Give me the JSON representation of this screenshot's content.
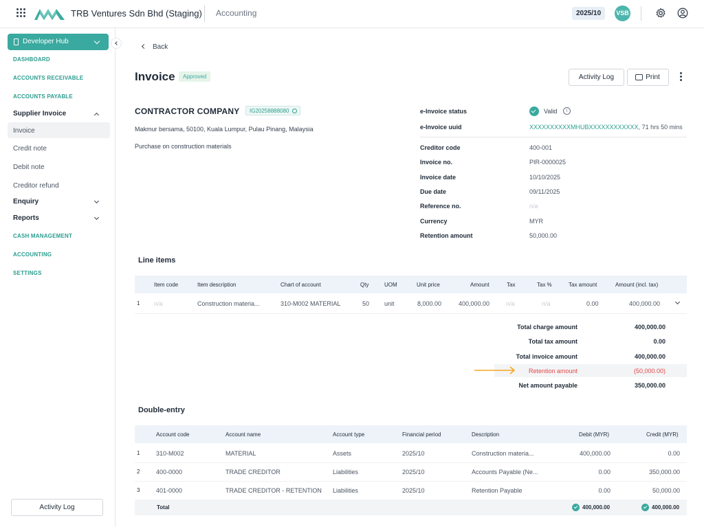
{
  "header": {
    "company": "TRB Ventures Sdn Bhd (Staging)",
    "app": "Accounting",
    "period": "2025/10",
    "avatar": "VSB"
  },
  "sidebar": {
    "hub_label": "Developer Hub",
    "items": [
      {
        "label": "DASHBOARD"
      },
      {
        "label": "ACCOUNTS RECEIVABLE"
      },
      {
        "label": "ACCOUNTS PAYABLE"
      }
    ],
    "supplier_invoice": "Supplier Invoice",
    "sub_items": [
      {
        "label": "Invoice"
      },
      {
        "label": "Credit note"
      },
      {
        "label": "Debit note"
      },
      {
        "label": "Creditor refund"
      }
    ],
    "enquiry": "Enquiry",
    "reports": "Reports",
    "bottom_items": [
      {
        "label": "CASH MANAGEMENT"
      },
      {
        "label": "ACCOUNTING"
      },
      {
        "label": "SETTINGS"
      }
    ],
    "activity_log": "Activity Log"
  },
  "page": {
    "back": "Back",
    "title": "Invoice",
    "status": "Approved",
    "activity_log": "Activity Log",
    "print": "Print"
  },
  "supplier": {
    "name": "CONTRACTOR COMPANY",
    "tin": "IG20258888080",
    "address": "Makmur bersama, 50100, Kuala Lumpur, Pulau Pinang, Malaysia",
    "description": "Purchase on construction materials"
  },
  "einvoice": {
    "status_label": "e-Invoice status",
    "status_value": "Valid",
    "uuid_label": "e-Invoice uuid",
    "uuid_value": "XXXXXXXXXXMHUBXXXXXXXXXXXX",
    "uuid_suffix": ", 71 hrs 50 mins"
  },
  "details": [
    {
      "label": "Creditor code",
      "value": "400-001"
    },
    {
      "label": "Invoice no.",
      "value": "PIR-0000025"
    },
    {
      "label": "Invoice date",
      "value": "10/10/2025"
    },
    {
      "label": "Due date",
      "value": "09/11/2025"
    },
    {
      "label": "Reference no.",
      "value": "n/a"
    },
    {
      "label": "Currency",
      "value": "MYR"
    },
    {
      "label": "Retention amount",
      "value": "50,000.00"
    }
  ],
  "line_items": {
    "title": "Line items",
    "headers": {
      "item_code": "Item code",
      "item_description": "Item description",
      "chart_of_account": "Chart of account",
      "qty": "Qty",
      "uom": "UOM",
      "unit_price": "Unit price",
      "amount": "Amount",
      "tax": "Tax",
      "tax_pct": "Tax %",
      "tax_amount": "Tax amount",
      "amount_incl_tax": "Amount (incl. tax)"
    },
    "rows": [
      {
        "no": "1",
        "item_code": "n/a",
        "item_description": "Construction materia...",
        "chart_of_account": "310-M002 MATERIAL",
        "qty": "50",
        "uom": "unit",
        "unit_price": "8,000.00",
        "amount": "400,000.00",
        "tax": "n/a",
        "tax_pct": "n/a",
        "tax_amount": "0.00",
        "amount_incl_tax": "400,000.00"
      }
    ]
  },
  "summary": {
    "total_charge_label": "Total charge amount",
    "total_charge_value": "400,000.00",
    "total_tax_label": "Total tax amount",
    "total_tax_value": "0.00",
    "total_invoice_label": "Total invoice amount",
    "total_invoice_value": "400,000.00",
    "retention_label": "Retention amount",
    "retention_value": "(50,000.00)",
    "net_payable_label": "Net amount payable",
    "net_payable_value": "350,000.00"
  },
  "double_entry": {
    "title": "Double-entry",
    "headers": {
      "account_code": "Account code",
      "account_name": "Account name",
      "account_type": "Account type",
      "financial_period": "Financial period",
      "description": "Description",
      "debit": "Debit (MYR)",
      "credit": "Credit (MYR)"
    },
    "rows": [
      {
        "no": "1",
        "account_code": "310-M002",
        "account_name": "MATERIAL",
        "account_type": "Assets",
        "financial_period": "2025/10",
        "description": "Construction materia...",
        "debit": "400,000.00",
        "credit": "0.00"
      },
      {
        "no": "2",
        "account_code": "400-0000",
        "account_name": "TRADE CREDITOR",
        "account_type": "Liabilities",
        "financial_period": "2025/10",
        "description": "Accounts Payable (Ne...",
        "debit": "0.00",
        "credit": "350,000.00"
      },
      {
        "no": "3",
        "account_code": "401-0000",
        "account_name": "TRADE CREDITOR - RETENTION",
        "account_type": "Liabilities",
        "financial_period": "2025/10",
        "description": "Retention Payable",
        "debit": "0.00",
        "credit": "50,000.00"
      }
    ],
    "total_label": "Total",
    "total_debit": "400,000.00",
    "total_credit": "400,000.00"
  },
  "colors": {
    "accent": "#3aa99f",
    "danger": "#e04848",
    "arrow": "#f5a623"
  }
}
